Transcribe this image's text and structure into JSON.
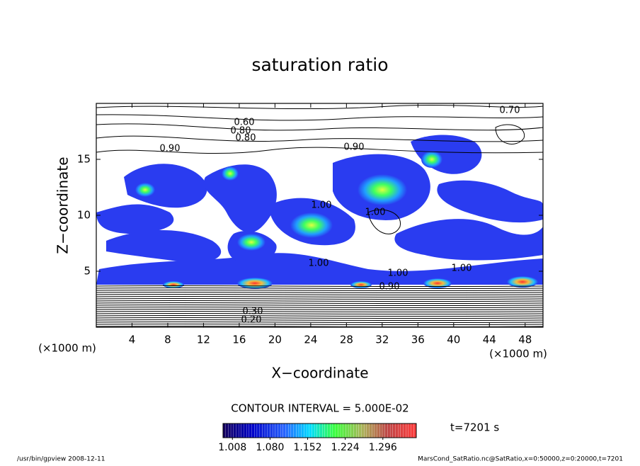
{
  "chart_data": {
    "type": "contour",
    "title": "saturation ratio",
    "x_label": "X−coordinate",
    "y_label": "Z−coordinate",
    "x_unit": "(×1000 m)",
    "y_unit": "(×1000 m)",
    "xlim": [
      0,
      50
    ],
    "xticks": [
      4,
      8,
      12,
      16,
      20,
      24,
      28,
      32,
      36,
      40,
      44,
      48
    ],
    "ylim": [
      0,
      20
    ],
    "yticks": [
      5,
      10,
      15
    ],
    "contour_labels": [
      "0.60",
      "0.70",
      "0.80",
      "0.80",
      "0.90",
      "0.90",
      "1.00",
      "1.00",
      "1.00",
      "1.00",
      "1.00",
      "0.90",
      "0.20",
      "0.30"
    ],
    "contour_interval": "CONTOUR INTERVAL = 5.000E-02",
    "colorbar": {
      "clim": [
        0.99,
        1.36
      ],
      "ticks": [
        {
          "value": 1.008,
          "label": "1.008"
        },
        {
          "value": 1.08,
          "label": "1.080"
        },
        {
          "value": 1.152,
          "label": "1.152"
        },
        {
          "value": 1.224,
          "label": "1.224"
        },
        {
          "value": 1.296,
          "label": "1.296"
        }
      ]
    },
    "time_label": "t=7201 s",
    "footer_left": "/usr/bin/gpview   2008-12-11",
    "footer_right": "MarsCond_SatRatio.nc@SatRatio,x=0:50000,z=0:20000,t=7201"
  }
}
